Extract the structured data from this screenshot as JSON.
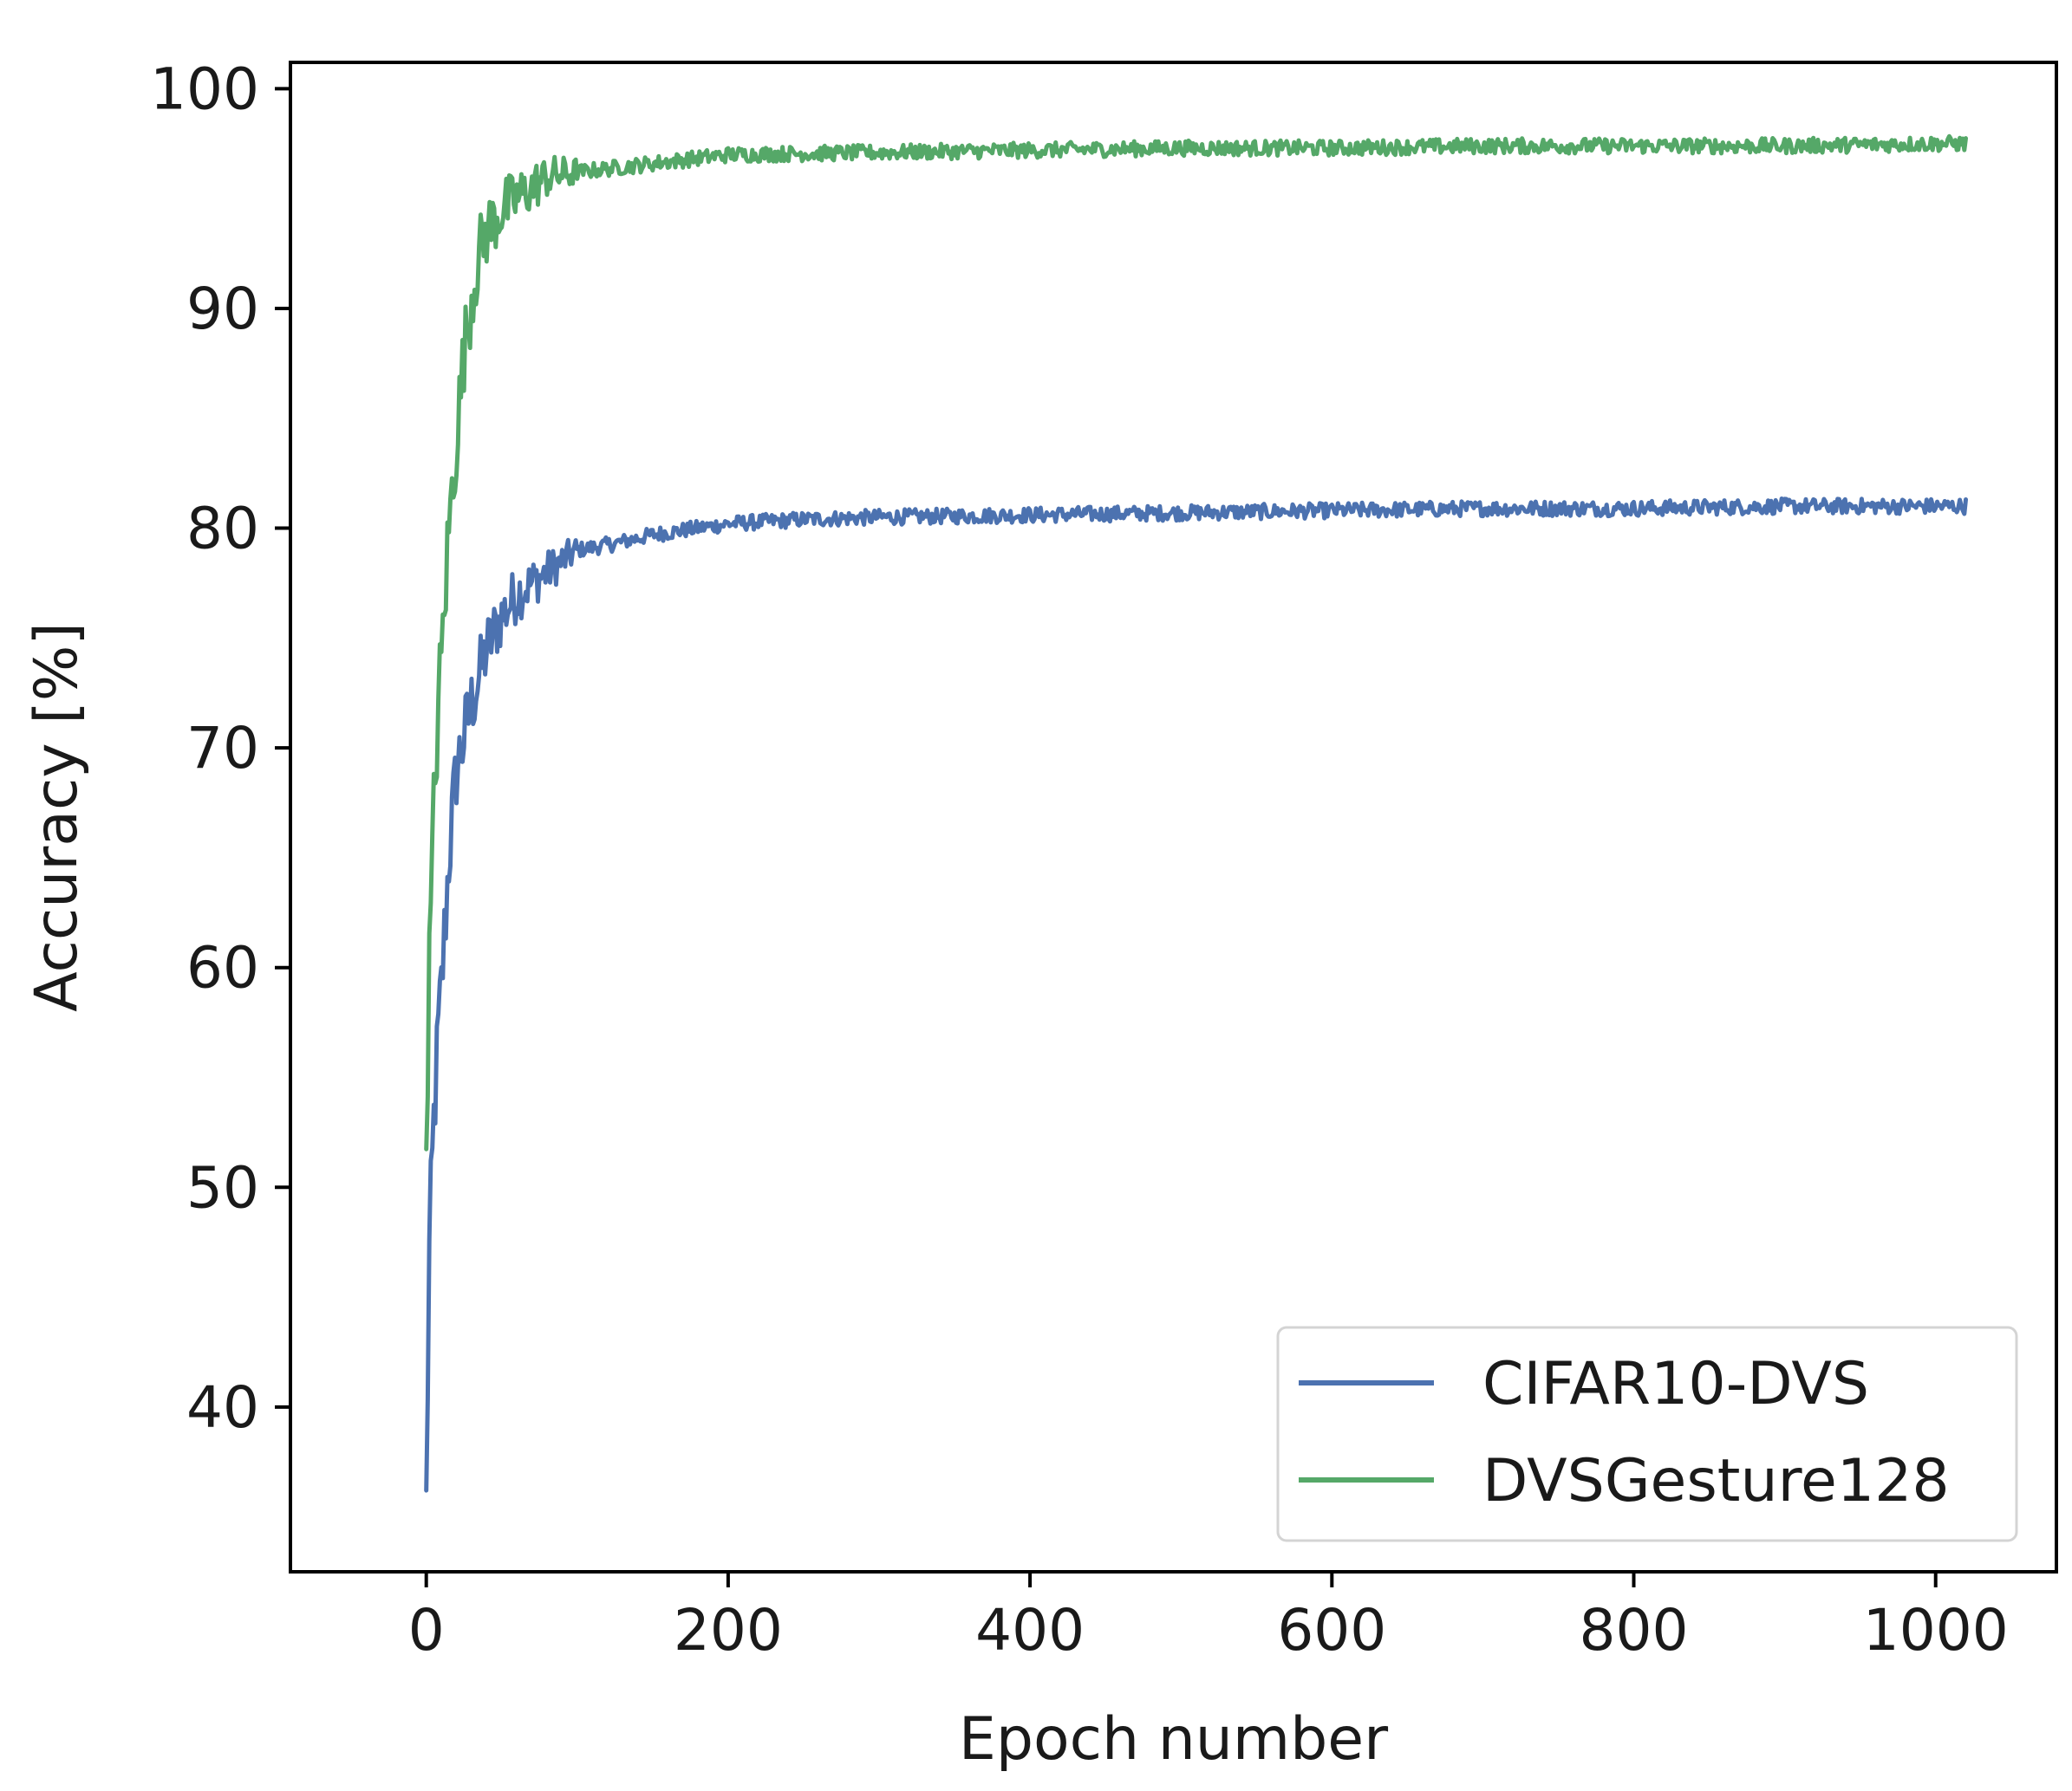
{
  "chart_data": {
    "type": "line",
    "title": "",
    "xlabel": "Epoch number",
    "ylabel": "Accuracy [%]",
    "xlim": [
      -90,
      1080
    ],
    "ylim": [
      32.5,
      101.2
    ],
    "xticks": [
      0,
      200,
      400,
      600,
      800,
      1000
    ],
    "xtick_labels": [
      "0",
      "200",
      "400",
      "600",
      "800",
      "1000"
    ],
    "yticks": [
      40,
      50,
      60,
      70,
      80,
      90,
      100
    ],
    "ytick_labels": [
      "40",
      "50",
      "60",
      "70",
      "80",
      "90",
      "100"
    ],
    "grid": false,
    "legend_position": "lower-right",
    "series": [
      {
        "name": "CIFAR10-DVS",
        "color": "#4c72b0",
        "noise": 0.35,
        "x": [
          0,
          2,
          5,
          8,
          10,
          15,
          20,
          30,
          40,
          50,
          60,
          80,
          100,
          125,
          150,
          200,
          250,
          300,
          400,
          500,
          600,
          700,
          800,
          900,
          1000,
          1020
        ],
        "y": [
          35.5,
          47,
          53,
          57,
          59,
          65,
          69,
          72,
          74.5,
          76,
          77,
          78,
          79,
          79.3,
          79.7,
          80.2,
          80.4,
          80.5,
          80.6,
          80.7,
          80.8,
          80.9,
          80.9,
          81.0,
          81.0,
          81.0
        ]
      },
      {
        "name": "DVSGesture128",
        "color": "#55a868",
        "noise": 0.35,
        "x": [
          0,
          2,
          5,
          8,
          10,
          15,
          20,
          25,
          30,
          35,
          40,
          50,
          60,
          70,
          80,
          100,
          125,
          150,
          200,
          300,
          400,
          500,
          600,
          700,
          800,
          900,
          1000,
          1020
        ],
        "y": [
          52.5,
          60,
          67,
          72,
          74,
          80,
          84,
          88,
          90.5,
          92.5,
          93.5,
          94.5,
          95,
          95.5,
          96,
          96.2,
          96.4,
          96.6,
          97,
          97.1,
          97.2,
          97.3,
          97.3,
          97.4,
          97.4,
          97.4,
          97.5,
          97.5
        ]
      }
    ]
  }
}
